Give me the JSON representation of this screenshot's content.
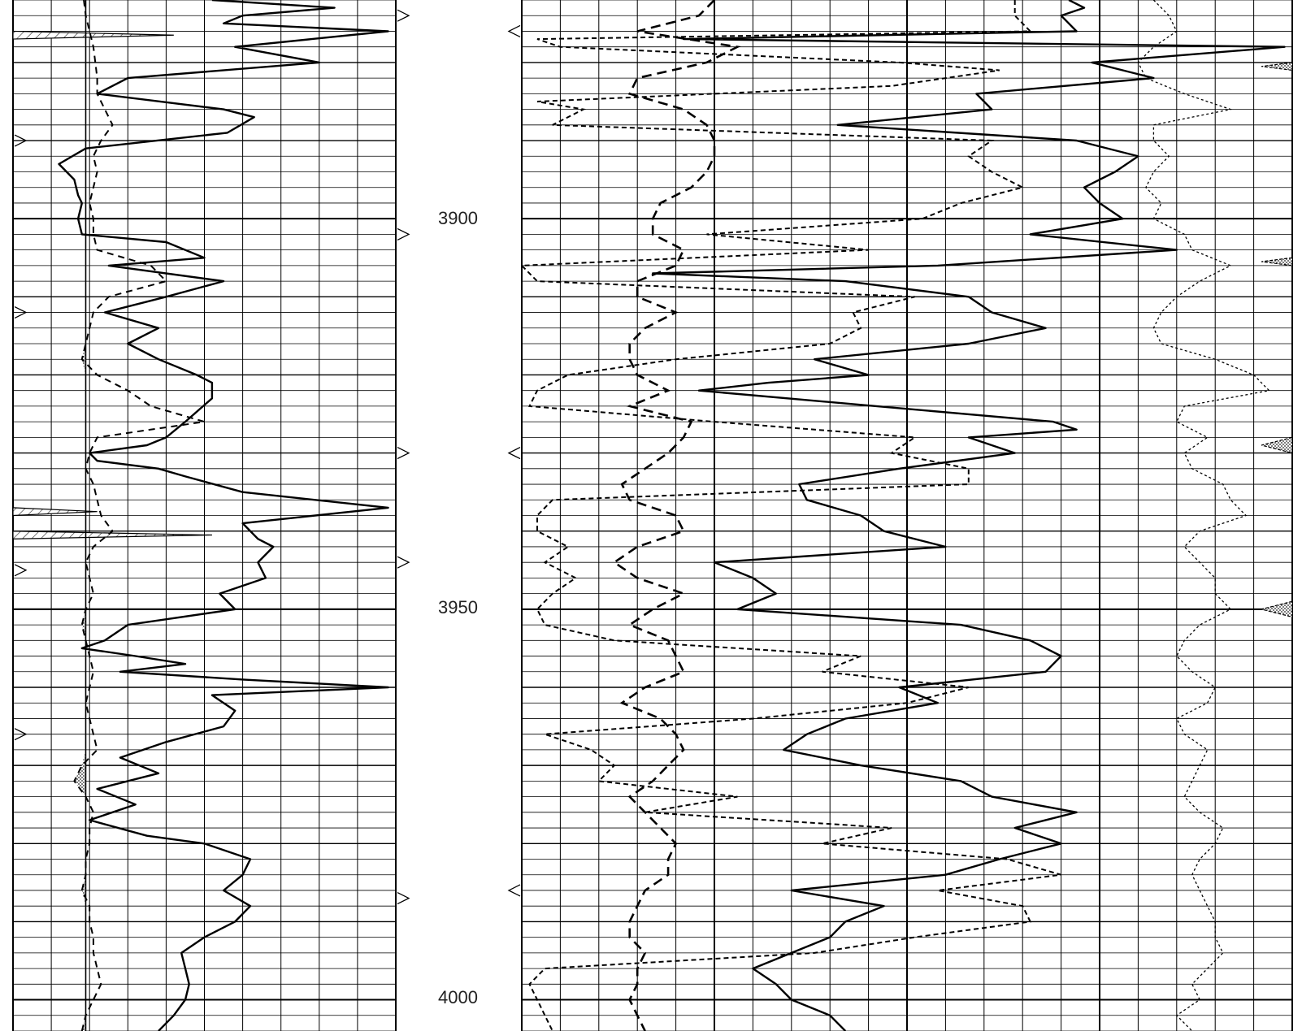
{
  "chart_data": {
    "type": "line",
    "depth_range": [
      3872,
      4004
    ],
    "depth_labels": [
      "3900",
      "3950",
      "4000"
    ],
    "depth_ticks": [
      3900,
      3950,
      4000
    ],
    "major_depths": [
      3880,
      3890,
      3900,
      3910,
      3920,
      3930,
      3940,
      3950,
      3960,
      3970,
      3980,
      3990,
      4000
    ],
    "left_track": {
      "gamma_ray": {
        "depth": [
          3872,
          3873,
          3874,
          3875,
          3876,
          3878,
          3880,
          3882,
          3884,
          3886,
          3887,
          3889,
          3891,
          3893,
          3895,
          3897,
          3898,
          3900,
          3902,
          3903,
          3905,
          3906,
          3908,
          3910,
          3912,
          3914,
          3916,
          3918,
          3920,
          3921,
          3923,
          3926,
          3928,
          3929,
          3930,
          3931,
          3932,
          3933,
          3935,
          3937,
          3939,
          3941,
          3942,
          3944,
          3946,
          3948,
          3950,
          3952,
          3954,
          3955,
          3956,
          3957,
          3958,
          3959,
          3960,
          3961,
          3962,
          3963,
          3965,
          3967,
          3969,
          3971,
          3973,
          3975,
          3977,
          3979,
          3980,
          3982,
          3984,
          3986,
          3988,
          3990,
          3992,
          3994,
          3996,
          3998,
          4000,
          4002,
          4004
        ],
        "value": [
          0.52,
          0.84,
          0.6,
          0.55,
          0.98,
          0.58,
          0.8,
          0.3,
          0.22,
          0.55,
          0.63,
          0.56,
          0.19,
          0.12,
          0.16,
          0.17,
          0.18,
          0.17,
          0.18,
          0.4,
          0.5,
          0.25,
          0.55,
          0.4,
          0.24,
          0.38,
          0.3,
          0.38,
          0.48,
          0.52,
          0.52,
          0.45,
          0.4,
          0.35,
          0.2,
          0.22,
          0.38,
          0.45,
          0.6,
          0.98,
          0.6,
          0.64,
          0.68,
          0.64,
          0.66,
          0.54,
          0.58,
          0.3,
          0.24,
          0.18,
          0.32,
          0.45,
          0.28,
          0.6,
          0.98,
          0.52,
          0.55,
          0.58,
          0.55,
          0.4,
          0.28,
          0.38,
          0.22,
          0.32,
          0.2,
          0.35,
          0.5,
          0.62,
          0.6,
          0.55,
          0.62,
          0.58,
          0.5,
          0.44,
          0.45,
          0.46,
          0.45,
          0.42,
          0.38
        ]
      },
      "sp": {
        "depth": [
          3872,
          3874,
          3876,
          3878,
          3880,
          3882,
          3884,
          3886,
          3888,
          3890,
          3892,
          3894,
          3896,
          3898,
          3900,
          3902,
          3904,
          3906,
          3908,
          3910,
          3912,
          3914,
          3916,
          3918,
          3920,
          3922,
          3924,
          3926,
          3928,
          3930,
          3932,
          3934,
          3936,
          3938,
          3940,
          3942,
          3944,
          3946,
          3948,
          3950,
          3952,
          3954,
          3956,
          3958,
          3960,
          3962,
          3964,
          3966,
          3968,
          3970,
          3972,
          3974,
          3976,
          3978,
          3980,
          3982,
          3984,
          3986,
          3988,
          3990,
          3992,
          3994,
          3996,
          3998,
          4000,
          4002,
          4004
        ],
        "value": [
          0.185,
          0.19,
          0.2,
          0.21,
          0.215,
          0.22,
          0.22,
          0.24,
          0.26,
          0.23,
          0.21,
          0.22,
          0.21,
          0.2,
          0.21,
          0.21,
          0.22,
          0.36,
          0.4,
          0.25,
          0.21,
          0.2,
          0.19,
          0.18,
          0.22,
          0.3,
          0.36,
          0.5,
          0.22,
          0.2,
          0.19,
          0.21,
          0.22,
          0.23,
          0.26,
          0.21,
          0.19,
          0.2,
          0.21,
          0.19,
          0.18,
          0.19,
          0.2,
          0.21,
          0.2,
          0.19,
          0.2,
          0.21,
          0.22,
          0.18,
          0.16,
          0.19,
          0.21,
          0.2,
          0.2,
          0.19,
          0.19,
          0.18,
          0.2,
          0.2,
          0.21,
          0.21,
          0.22,
          0.23,
          0.21,
          0.19,
          0.18
        ]
      }
    },
    "right_track": {
      "curve_1": {
        "depth": [
          3872,
          3873,
          3874,
          3876,
          3877,
          3878,
          3880,
          3882,
          3884,
          3886,
          3888,
          3890,
          3892,
          3894,
          3896,
          3898,
          3900,
          3902,
          3904,
          3906,
          3907,
          3908,
          3910,
          3912,
          3914,
          3916,
          3918,
          3920,
          3921,
          3922,
          3924,
          3926,
          3927,
          3928,
          3930,
          3932,
          3934,
          3936,
          3938,
          3940,
          3942,
          3944,
          3946,
          3948,
          3950,
          3952,
          3954,
          3956,
          3958,
          3960,
          3962,
          3964,
          3966,
          3968,
          3970,
          3972,
          3974,
          3976,
          3978,
          3980,
          3982,
          3984,
          3986,
          3988,
          3990,
          3992,
          3994,
          3996,
          3998,
          4000,
          4002,
          4004
        ],
        "value": [
          0.71,
          0.73,
          0.7,
          0.72,
          0.21,
          0.99,
          0.74,
          0.82,
          0.59,
          0.61,
          0.41,
          0.72,
          0.8,
          0.77,
          0.73,
          0.75,
          0.78,
          0.66,
          0.85,
          0.54,
          0.17,
          0.42,
          0.58,
          0.61,
          0.68,
          0.58,
          0.38,
          0.45,
          0.32,
          0.23,
          0.46,
          0.69,
          0.72,
          0.58,
          0.64,
          0.49,
          0.36,
          0.37,
          0.44,
          0.47,
          0.55,
          0.25,
          0.3,
          0.33,
          0.28,
          0.57,
          0.66,
          0.7,
          0.68,
          0.49,
          0.54,
          0.42,
          0.37,
          0.34,
          0.44,
          0.57,
          0.61,
          0.72,
          0.64,
          0.7,
          0.62,
          0.55,
          0.35,
          0.47,
          0.42,
          0.4,
          0.35,
          0.3,
          0.33,
          0.35,
          0.4,
          0.42
        ]
      },
      "curve_2": {
        "depth": [
          3872,
          3874,
          3876,
          3877,
          3878,
          3880,
          3881,
          3883,
          3885,
          3886,
          3888,
          3890,
          3892,
          3894,
          3896,
          3898,
          3900,
          3902,
          3904,
          3906,
          3908,
          3910,
          3912,
          3914,
          3916,
          3918,
          3920,
          3922,
          3924,
          3926,
          3928,
          3930,
          3932,
          3934,
          3936,
          3938,
          3940,
          3942,
          3944,
          3946,
          3948,
          3950,
          3952,
          3954,
          3956,
          3958,
          3960,
          3962,
          3964,
          3966,
          3968,
          3970,
          3972,
          3974,
          3976,
          3978,
          3980,
          3982,
          3984,
          3986,
          3988,
          3990,
          3992,
          3994,
          3996,
          3998,
          4000,
          4002,
          4004
        ],
        "value": [
          0.64,
          0.64,
          0.66,
          0.02,
          0.05,
          0.49,
          0.62,
          0.48,
          0.02,
          0.08,
          0.04,
          0.61,
          0.58,
          0.61,
          0.65,
          0.57,
          0.52,
          0.24,
          0.45,
          0.0,
          0.02,
          0.51,
          0.43,
          0.44,
          0.4,
          0.2,
          0.06,
          0.02,
          0.01,
          0.25,
          0.51,
          0.48,
          0.58,
          0.58,
          0.04,
          0.02,
          0.02,
          0.06,
          0.03,
          0.07,
          0.04,
          0.02,
          0.03,
          0.12,
          0.44,
          0.39,
          0.58,
          0.5,
          0.3,
          0.03,
          0.09,
          0.12,
          0.1,
          0.28,
          0.16,
          0.48,
          0.39,
          0.63,
          0.7,
          0.54,
          0.65,
          0.66,
          0.51,
          0.38,
          0.03,
          0.01,
          0.02,
          0.03,
          0.04
        ]
      },
      "curve_3": {
        "depth": [
          3872,
          3874,
          3876,
          3878,
          3880,
          3882,
          3884,
          3886,
          3888,
          3890,
          3892,
          3894,
          3896,
          3898,
          3900,
          3902,
          3904,
          3906,
          3908,
          3910,
          3912,
          3914,
          3916,
          3918,
          3920,
          3922,
          3924,
          3926,
          3928,
          3930,
          3932,
          3934,
          3936,
          3938,
          3940,
          3942,
          3944,
          3946,
          3948,
          3950,
          3952,
          3954,
          3956,
          3958,
          3960,
          3962,
          3964,
          3966,
          3968,
          3970,
          3972,
          3974,
          3976,
          3978,
          3980,
          3982,
          3984,
          3986,
          3988,
          3990,
          3992,
          3994,
          3996,
          3998,
          4000,
          4002,
          4004
        ],
        "value": [
          0.25,
          0.23,
          0.15,
          0.28,
          0.24,
          0.15,
          0.14,
          0.21,
          0.24,
          0.25,
          0.25,
          0.24,
          0.22,
          0.18,
          0.17,
          0.17,
          0.21,
          0.2,
          0.15,
          0.15,
          0.2,
          0.16,
          0.14,
          0.14,
          0.15,
          0.19,
          0.14,
          0.22,
          0.21,
          0.19,
          0.16,
          0.13,
          0.14,
          0.2,
          0.21,
          0.15,
          0.12,
          0.15,
          0.21,
          0.17,
          0.14,
          0.19,
          0.2,
          0.21,
          0.16,
          0.13,
          0.18,
          0.2,
          0.21,
          0.19,
          0.17,
          0.14,
          0.16,
          0.18,
          0.2,
          0.19,
          0.19,
          0.16,
          0.15,
          0.14,
          0.14,
          0.16,
          0.15,
          0.15,
          0.14,
          0.15,
          0.16
        ]
      },
      "curve_4": {
        "depth": [
          3872,
          3874,
          3876,
          3878,
          3880,
          3882,
          3884,
          3886,
          3888,
          3890,
          3892,
          3894,
          3896,
          3898,
          3900,
          3902,
          3904,
          3906,
          3908,
          3910,
          3912,
          3914,
          3916,
          3918,
          3920,
          3922,
          3924,
          3926,
          3928,
          3930,
          3932,
          3934,
          3936,
          3938,
          3940,
          3942,
          3944,
          3946,
          3948,
          3950,
          3952,
          3954,
          3956,
          3958,
          3960,
          3962,
          3964,
          3966,
          3968,
          3970,
          3972,
          3974,
          3976,
          3978,
          3980,
          3982,
          3984,
          3986,
          3988,
          3990,
          3992,
          3994,
          3996,
          3998,
          4000,
          4002,
          4004
        ],
        "value": [
          0.82,
          0.84,
          0.85,
          0.82,
          0.8,
          0.81,
          0.86,
          0.92,
          0.82,
          0.82,
          0.84,
          0.82,
          0.81,
          0.83,
          0.82,
          0.86,
          0.87,
          0.92,
          0.88,
          0.85,
          0.83,
          0.82,
          0.83,
          0.9,
          0.95,
          0.97,
          0.86,
          0.85,
          0.89,
          0.86,
          0.87,
          0.91,
          0.92,
          0.94,
          0.88,
          0.86,
          0.88,
          0.9,
          0.9,
          0.92,
          0.88,
          0.86,
          0.85,
          0.87,
          0.9,
          0.89,
          0.85,
          0.86,
          0.89,
          0.88,
          0.87,
          0.86,
          0.88,
          0.91,
          0.9,
          0.88,
          0.87,
          0.88,
          0.89,
          0.9,
          0.9,
          0.91,
          0.89,
          0.87,
          0.88,
          0.85,
          0.87
        ]
      }
    }
  }
}
